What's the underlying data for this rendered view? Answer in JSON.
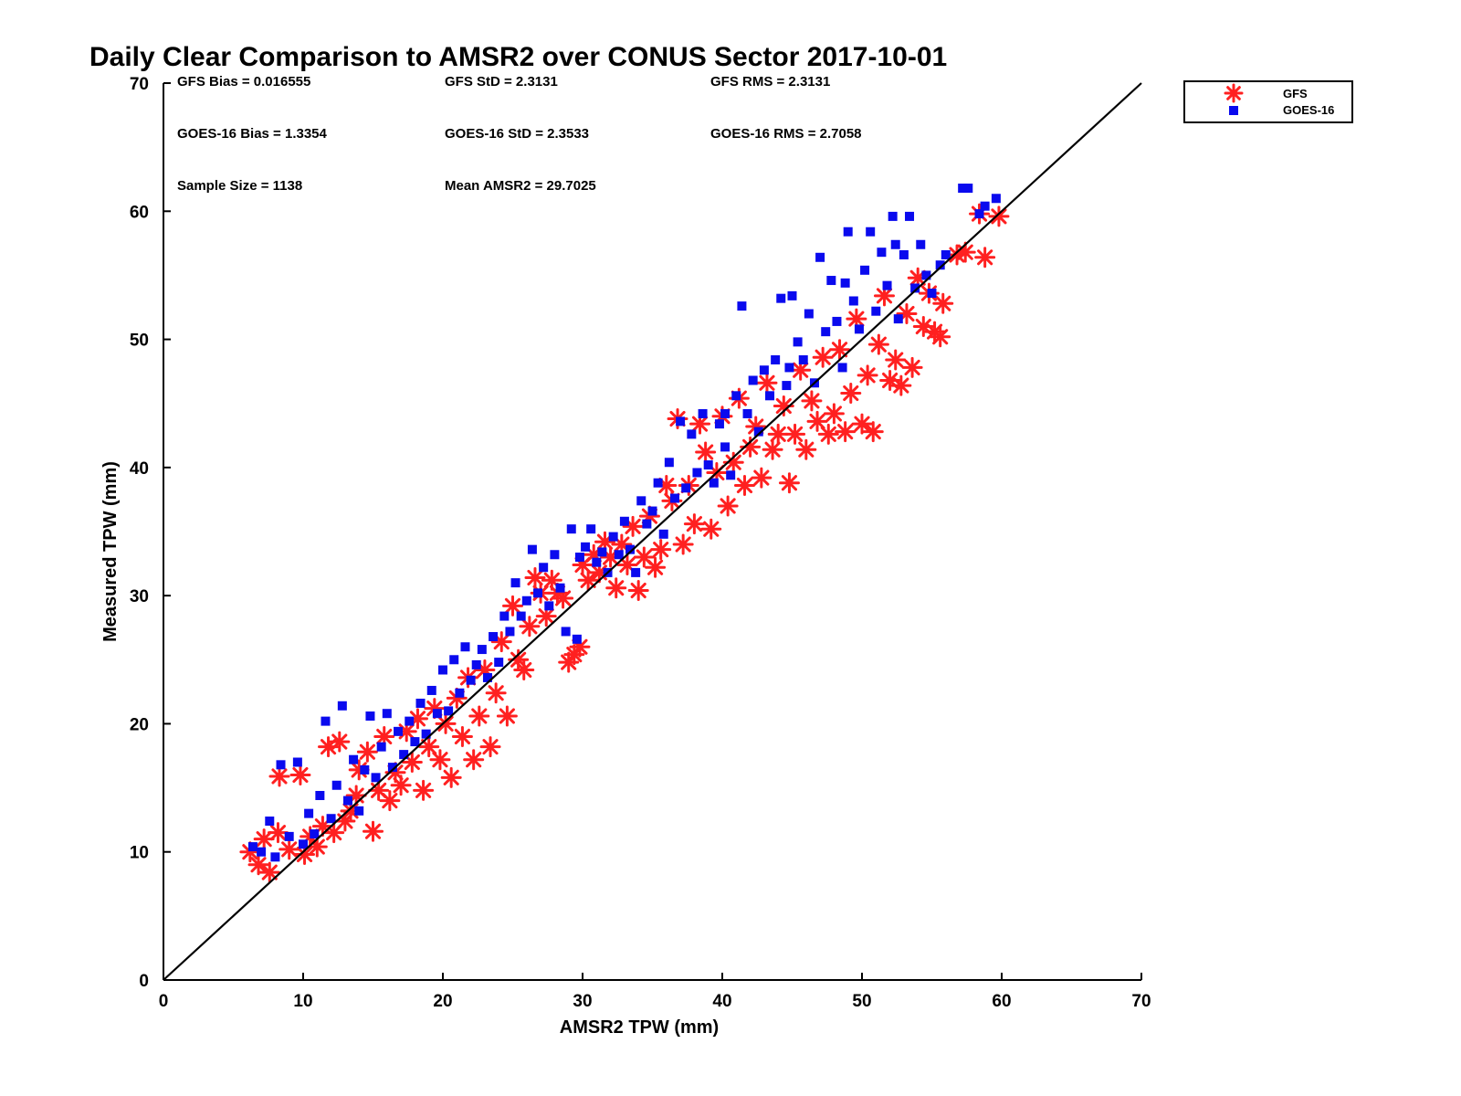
{
  "chart_data": {
    "type": "scatter",
    "title": "Daily Clear Comparison to AMSR2 over CONUS Sector 2017-10-01",
    "xlabel": "AMSR2 TPW (mm)",
    "ylabel": "Measured TPW (mm)",
    "xlim": [
      0,
      70
    ],
    "ylim": [
      0,
      70
    ],
    "xticks": [
      "0",
      "10",
      "20",
      "30",
      "40",
      "50",
      "60",
      "70"
    ],
    "yticks": [
      "0",
      "10",
      "20",
      "30",
      "40",
      "50",
      "60",
      "70"
    ],
    "grid": false,
    "legend_position": "top-right, outside plot",
    "reference_line": {
      "x": [
        0,
        70
      ],
      "y": [
        0,
        70
      ],
      "color": "#000000"
    },
    "stats": {
      "gfs_bias": "GFS Bias = 0.016555",
      "gfs_std": "GFS StD = 2.3131",
      "gfs_rms": "GFS RMS = 2.3131",
      "goes_bias": "GOES-16 Bias = 1.3354",
      "goes_std": "GOES-16 StD = 2.3533",
      "goes_rms": "GOES-16 RMS = 2.7058",
      "sample_size": "Sample Size = 1138",
      "mean_amsr2": "Mean AMSR2 = 29.7025"
    },
    "series": [
      {
        "name": "GFS",
        "marker": "asterisk",
        "color": "#ff2020",
        "points": [
          [
            6.2,
            10.0
          ],
          [
            6.8,
            9.0
          ],
          [
            7.2,
            11.0
          ],
          [
            7.6,
            8.4
          ],
          [
            8.2,
            11.5
          ],
          [
            8.3,
            15.9
          ],
          [
            9.0,
            10.2
          ],
          [
            9.8,
            16.0
          ],
          [
            10.1,
            9.8
          ],
          [
            10.5,
            11.2
          ],
          [
            11.0,
            10.4
          ],
          [
            11.4,
            12.0
          ],
          [
            11.8,
            18.2
          ],
          [
            12.2,
            11.5
          ],
          [
            12.6,
            18.6
          ],
          [
            13.0,
            12.4
          ],
          [
            13.4,
            13.2
          ],
          [
            13.8,
            14.4
          ],
          [
            14.0,
            16.4
          ],
          [
            14.6,
            17.8
          ],
          [
            15.0,
            11.6
          ],
          [
            15.4,
            14.8
          ],
          [
            15.8,
            19.0
          ],
          [
            16.2,
            14.0
          ],
          [
            16.6,
            16.2
          ],
          [
            17.0,
            15.2
          ],
          [
            17.4,
            19.4
          ],
          [
            17.8,
            17.0
          ],
          [
            18.2,
            20.4
          ],
          [
            18.6,
            14.8
          ],
          [
            19.0,
            18.2
          ],
          [
            19.4,
            21.2
          ],
          [
            19.8,
            17.2
          ],
          [
            20.2,
            20.0
          ],
          [
            20.6,
            15.8
          ],
          [
            21.0,
            22.0
          ],
          [
            21.4,
            19.0
          ],
          [
            21.8,
            23.6
          ],
          [
            22.2,
            17.2
          ],
          [
            22.6,
            20.6
          ],
          [
            23.0,
            24.2
          ],
          [
            23.4,
            18.2
          ],
          [
            23.8,
            22.4
          ],
          [
            24.2,
            26.4
          ],
          [
            24.6,
            20.6
          ],
          [
            25.0,
            29.2
          ],
          [
            25.4,
            25.0
          ],
          [
            25.8,
            24.2
          ],
          [
            26.2,
            27.6
          ],
          [
            26.6,
            31.4
          ],
          [
            27.0,
            30.2
          ],
          [
            27.4,
            28.4
          ],
          [
            27.8,
            31.2
          ],
          [
            28.2,
            30.2
          ],
          [
            28.6,
            29.8
          ],
          [
            29.0,
            24.8
          ],
          [
            29.4,
            25.4
          ],
          [
            29.8,
            26.0
          ],
          [
            30.0,
            32.4
          ],
          [
            30.4,
            31.2
          ],
          [
            30.8,
            33.2
          ],
          [
            31.2,
            31.8
          ],
          [
            31.6,
            34.2
          ],
          [
            32.0,
            33.0
          ],
          [
            32.4,
            30.6
          ],
          [
            32.8,
            34.0
          ],
          [
            33.2,
            32.4
          ],
          [
            33.6,
            35.4
          ],
          [
            34.0,
            30.4
          ],
          [
            34.4,
            33.0
          ],
          [
            34.8,
            36.2
          ],
          [
            35.2,
            32.2
          ],
          [
            35.6,
            33.6
          ],
          [
            36.0,
            38.6
          ],
          [
            36.4,
            37.4
          ],
          [
            36.8,
            43.8
          ],
          [
            37.2,
            34.0
          ],
          [
            37.6,
            38.6
          ],
          [
            38.0,
            35.6
          ],
          [
            38.4,
            43.4
          ],
          [
            38.8,
            41.2
          ],
          [
            39.2,
            35.2
          ],
          [
            39.6,
            39.6
          ],
          [
            40.0,
            44.0
          ],
          [
            40.4,
            37.0
          ],
          [
            40.8,
            40.4
          ],
          [
            41.2,
            45.4
          ],
          [
            41.6,
            38.6
          ],
          [
            42.0,
            41.6
          ],
          [
            42.4,
            43.2
          ],
          [
            42.8,
            39.2
          ],
          [
            43.2,
            46.6
          ],
          [
            43.6,
            41.4
          ],
          [
            44.0,
            42.6
          ],
          [
            44.4,
            44.8
          ],
          [
            44.8,
            38.8
          ],
          [
            45.2,
            42.6
          ],
          [
            45.6,
            47.6
          ],
          [
            46.0,
            41.4
          ],
          [
            46.4,
            45.2
          ],
          [
            46.8,
            43.6
          ],
          [
            47.2,
            48.6
          ],
          [
            47.6,
            42.6
          ],
          [
            48.0,
            44.2
          ],
          [
            48.4,
            49.2
          ],
          [
            48.8,
            42.8
          ],
          [
            49.2,
            45.8
          ],
          [
            49.6,
            51.6
          ],
          [
            50.0,
            43.4
          ],
          [
            50.4,
            47.2
          ],
          [
            50.8,
            42.8
          ],
          [
            51.2,
            49.6
          ],
          [
            51.6,
            53.4
          ],
          [
            52.0,
            46.8
          ],
          [
            52.4,
            48.4
          ],
          [
            52.8,
            46.4
          ],
          [
            53.2,
            52.0
          ],
          [
            53.6,
            47.8
          ],
          [
            54.0,
            54.8
          ],
          [
            54.4,
            51.0
          ],
          [
            54.8,
            53.6
          ],
          [
            55.2,
            50.6
          ],
          [
            55.6,
            50.2
          ],
          [
            55.8,
            52.8
          ],
          [
            56.8,
            56.6
          ],
          [
            57.4,
            56.8
          ],
          [
            58.4,
            59.8
          ],
          [
            58.8,
            56.4
          ],
          [
            59.8,
            59.6
          ]
        ]
      },
      {
        "name": "GOES-16",
        "marker": "square",
        "color": "#0a0aee",
        "points": [
          [
            6.4,
            10.4
          ],
          [
            7.0,
            10.0
          ],
          [
            7.6,
            12.4
          ],
          [
            8.0,
            9.6
          ],
          [
            8.4,
            16.8
          ],
          [
            9.0,
            11.2
          ],
          [
            9.6,
            17.0
          ],
          [
            10.0,
            10.6
          ],
          [
            10.4,
            13.0
          ],
          [
            10.8,
            11.4
          ],
          [
            11.2,
            14.4
          ],
          [
            11.6,
            20.2
          ],
          [
            12.0,
            12.6
          ],
          [
            12.4,
            15.2
          ],
          [
            12.8,
            21.4
          ],
          [
            13.2,
            14.0
          ],
          [
            13.6,
            17.2
          ],
          [
            14.0,
            13.2
          ],
          [
            14.4,
            16.4
          ],
          [
            14.8,
            20.6
          ],
          [
            15.2,
            15.8
          ],
          [
            15.6,
            18.2
          ],
          [
            16.0,
            20.8
          ],
          [
            16.4,
            16.6
          ],
          [
            16.8,
            19.4
          ],
          [
            17.2,
            17.6
          ],
          [
            17.6,
            20.2
          ],
          [
            18.0,
            18.6
          ],
          [
            18.4,
            21.6
          ],
          [
            18.8,
            19.2
          ],
          [
            19.2,
            22.6
          ],
          [
            19.6,
            20.8
          ],
          [
            20.0,
            24.2
          ],
          [
            20.4,
            21.0
          ],
          [
            20.8,
            25.0
          ],
          [
            21.2,
            22.4
          ],
          [
            21.6,
            26.0
          ],
          [
            22.0,
            23.4
          ],
          [
            22.4,
            24.6
          ],
          [
            22.8,
            25.8
          ],
          [
            23.2,
            23.6
          ],
          [
            23.6,
            26.8
          ],
          [
            24.0,
            24.8
          ],
          [
            24.4,
            28.4
          ],
          [
            24.8,
            27.2
          ],
          [
            25.2,
            31.0
          ],
          [
            25.6,
            28.4
          ],
          [
            26.0,
            29.6
          ],
          [
            26.4,
            33.6
          ],
          [
            26.8,
            30.2
          ],
          [
            27.2,
            32.2
          ],
          [
            27.6,
            29.2
          ],
          [
            28.0,
            33.2
          ],
          [
            28.4,
            30.6
          ],
          [
            28.8,
            27.2
          ],
          [
            29.2,
            35.2
          ],
          [
            29.6,
            26.6
          ],
          [
            29.8,
            33.0
          ],
          [
            30.2,
            33.8
          ],
          [
            30.6,
            35.2
          ],
          [
            31.0,
            32.6
          ],
          [
            31.4,
            33.4
          ],
          [
            31.8,
            31.8
          ],
          [
            32.2,
            34.6
          ],
          [
            32.6,
            33.2
          ],
          [
            33.0,
            35.8
          ],
          [
            33.4,
            33.6
          ],
          [
            33.8,
            31.8
          ],
          [
            34.2,
            37.4
          ],
          [
            34.6,
            35.6
          ],
          [
            35.0,
            36.6
          ],
          [
            35.4,
            38.8
          ],
          [
            35.8,
            34.8
          ],
          [
            36.2,
            40.4
          ],
          [
            36.6,
            37.6
          ],
          [
            37.0,
            43.6
          ],
          [
            37.4,
            38.4
          ],
          [
            37.8,
            42.6
          ],
          [
            38.2,
            39.6
          ],
          [
            38.6,
            44.2
          ],
          [
            39.0,
            40.2
          ],
          [
            39.4,
            38.8
          ],
          [
            39.8,
            43.4
          ],
          [
            40.2,
            41.6
          ],
          [
            40.6,
            39.4
          ],
          [
            41.0,
            45.6
          ],
          [
            41.4,
            52.6
          ],
          [
            41.8,
            44.2
          ],
          [
            42.2,
            46.8
          ],
          [
            42.6,
            42.8
          ],
          [
            43.0,
            47.6
          ],
          [
            43.4,
            45.6
          ],
          [
            43.8,
            48.4
          ],
          [
            44.2,
            53.2
          ],
          [
            44.6,
            46.4
          ],
          [
            45.0,
            53.4
          ],
          [
            45.4,
            49.8
          ],
          [
            45.8,
            48.4
          ],
          [
            46.2,
            52.0
          ],
          [
            46.6,
            46.6
          ],
          [
            47.0,
            56.4
          ],
          [
            47.4,
            50.6
          ],
          [
            47.8,
            54.6
          ],
          [
            48.2,
            51.4
          ],
          [
            48.6,
            47.8
          ],
          [
            49.0,
            58.4
          ],
          [
            49.4,
            53.0
          ],
          [
            49.8,
            50.8
          ],
          [
            50.2,
            55.4
          ],
          [
            50.6,
            58.4
          ],
          [
            51.0,
            52.2
          ],
          [
            51.4,
            56.8
          ],
          [
            51.8,
            54.2
          ],
          [
            52.2,
            59.6
          ],
          [
            52.6,
            51.6
          ],
          [
            53.0,
            56.6
          ],
          [
            53.4,
            59.6
          ],
          [
            53.8,
            54.0
          ],
          [
            54.2,
            57.4
          ],
          [
            54.6,
            55.0
          ],
          [
            55.0,
            53.6
          ],
          [
            55.6,
            55.8
          ],
          [
            56.0,
            56.6
          ],
          [
            57.2,
            61.8
          ],
          [
            57.6,
            61.8
          ],
          [
            58.4,
            59.8
          ],
          [
            58.8,
            60.4
          ],
          [
            59.6,
            61.0
          ],
          [
            40.2,
            44.2
          ],
          [
            44.8,
            47.8
          ],
          [
            48.8,
            54.4
          ],
          [
            52.4,
            57.4
          ]
        ]
      }
    ]
  }
}
